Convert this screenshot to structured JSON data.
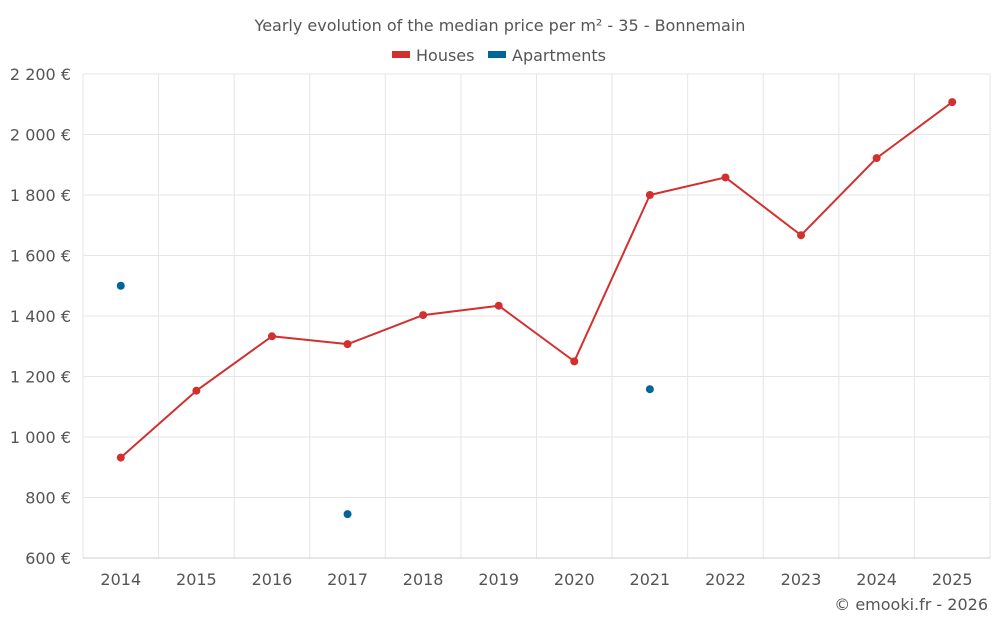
{
  "chart_data": {
    "type": "line",
    "title": "Yearly evolution of the median price per m² - 35 - Bonnemain",
    "xlabel": "",
    "ylabel": "",
    "categories": [
      "2014",
      "2015",
      "2016",
      "2017",
      "2018",
      "2019",
      "2020",
      "2021",
      "2022",
      "2023",
      "2024",
      "2025"
    ],
    "y_ticks": [
      "600 €",
      "800 €",
      "1 000 €",
      "1 200 €",
      "1 400 €",
      "1 600 €",
      "1 800 €",
      "2 000 €",
      "2 200 €"
    ],
    "y_tick_values": [
      600,
      800,
      1000,
      1200,
      1400,
      1600,
      1800,
      2000,
      2200
    ],
    "ylim": [
      600,
      2200
    ],
    "grid": true,
    "legend_position": "top-center",
    "series": [
      {
        "name": "Houses",
        "color": "#d32f2f",
        "mode": "line+markers",
        "values": [
          932,
          1153,
          1333,
          1307,
          1403,
          1434,
          1250,
          1800,
          1858,
          1667,
          1922,
          2107
        ]
      },
      {
        "name": "Apartments",
        "color": "#006699",
        "mode": "markers",
        "values": [
          1500,
          null,
          null,
          745,
          null,
          null,
          null,
          1158,
          null,
          null,
          null,
          null
        ]
      }
    ]
  },
  "credit": "© emooki.fr - 2026"
}
